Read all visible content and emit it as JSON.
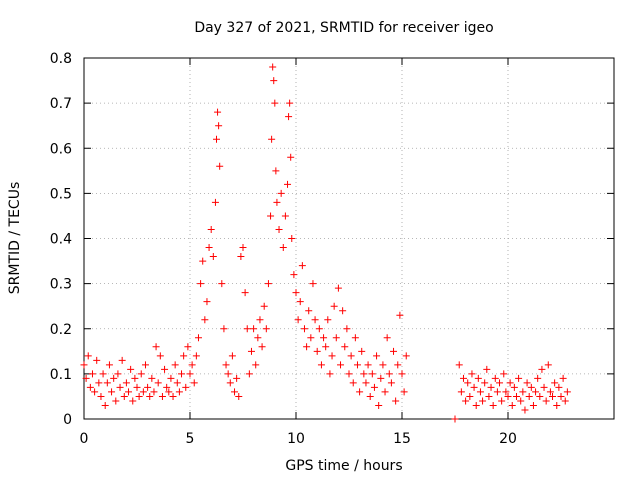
{
  "chart_data": {
    "type": "scatter",
    "title": "Day 327 of 2021, SRMTID for receiver igeo",
    "xlabel": "GPS time / hours",
    "ylabel": "SRMTID / TECUs",
    "xlim": [
      0,
      25
    ],
    "ylim": [
      0,
      0.8
    ],
    "x_ticks": [
      "0",
      "5",
      "10",
      "15",
      "20"
    ],
    "y_ticks": [
      "0",
      "0.1",
      "0.2",
      "0.3",
      "0.4",
      "0.5",
      "0.6",
      "0.7",
      "0.8"
    ],
    "grid": true,
    "marker": "plus",
    "series": [
      {
        "name": "SRMTID",
        "color": "#ff0000",
        "points": [
          [
            0.0,
            0.12
          ],
          [
            0.1,
            0.09
          ],
          [
            0.2,
            0.14
          ],
          [
            0.3,
            0.07
          ],
          [
            0.4,
            0.1
          ],
          [
            0.5,
            0.06
          ],
          [
            0.6,
            0.13
          ],
          [
            0.7,
            0.08
          ],
          [
            0.8,
            0.05
          ],
          [
            0.9,
            0.1
          ],
          [
            1.0,
            0.03
          ],
          [
            1.1,
            0.08
          ],
          [
            1.2,
            0.12
          ],
          [
            1.3,
            0.06
          ],
          [
            1.4,
            0.09
          ],
          [
            1.5,
            0.04
          ],
          [
            1.6,
            0.1
          ],
          [
            1.7,
            0.07
          ],
          [
            1.8,
            0.13
          ],
          [
            1.9,
            0.05
          ],
          [
            2.0,
            0.08
          ],
          [
            2.1,
            0.06
          ],
          [
            2.2,
            0.11
          ],
          [
            2.3,
            0.04
          ],
          [
            2.4,
            0.09
          ],
          [
            2.5,
            0.07
          ],
          [
            2.6,
            0.05
          ],
          [
            2.7,
            0.1
          ],
          [
            2.8,
            0.06
          ],
          [
            2.9,
            0.12
          ],
          [
            3.0,
            0.07
          ],
          [
            3.1,
            0.05
          ],
          [
            3.2,
            0.09
          ],
          [
            3.3,
            0.06
          ],
          [
            3.4,
            0.16
          ],
          [
            3.5,
            0.08
          ],
          [
            3.6,
            0.14
          ],
          [
            3.7,
            0.05
          ],
          [
            3.8,
            0.11
          ],
          [
            3.9,
            0.07
          ],
          [
            4.0,
            0.06
          ],
          [
            4.1,
            0.09
          ],
          [
            4.2,
            0.05
          ],
          [
            4.3,
            0.12
          ],
          [
            4.4,
            0.08
          ],
          [
            4.5,
            0.06
          ],
          [
            4.6,
            0.1
          ],
          [
            4.7,
            0.14
          ],
          [
            4.8,
            0.07
          ],
          [
            4.9,
            0.16
          ],
          [
            5.0,
            0.1
          ],
          [
            5.1,
            0.12
          ],
          [
            5.2,
            0.08
          ],
          [
            5.3,
            0.14
          ],
          [
            5.4,
            0.18
          ],
          [
            5.5,
            0.3
          ],
          [
            5.6,
            0.35
          ],
          [
            5.7,
            0.22
          ],
          [
            5.8,
            0.26
          ],
          [
            5.9,
            0.38
          ],
          [
            6.0,
            0.42
          ],
          [
            6.1,
            0.36
          ],
          [
            6.2,
            0.48
          ],
          [
            6.25,
            0.62
          ],
          [
            6.3,
            0.68
          ],
          [
            6.35,
            0.65
          ],
          [
            6.4,
            0.56
          ],
          [
            6.5,
            0.3
          ],
          [
            6.6,
            0.2
          ],
          [
            6.7,
            0.12
          ],
          [
            6.8,
            0.1
          ],
          [
            6.9,
            0.08
          ],
          [
            7.0,
            0.14
          ],
          [
            7.1,
            0.06
          ],
          [
            7.2,
            0.09
          ],
          [
            7.3,
            0.05
          ],
          [
            7.4,
            0.36
          ],
          [
            7.5,
            0.38
          ],
          [
            7.6,
            0.28
          ],
          [
            7.7,
            0.2
          ],
          [
            7.8,
            0.1
          ],
          [
            7.9,
            0.15
          ],
          [
            8.0,
            0.2
          ],
          [
            8.1,
            0.12
          ],
          [
            8.2,
            0.18
          ],
          [
            8.3,
            0.22
          ],
          [
            8.4,
            0.16
          ],
          [
            8.5,
            0.25
          ],
          [
            8.6,
            0.2
          ],
          [
            8.7,
            0.3
          ],
          [
            8.8,
            0.45
          ],
          [
            8.85,
            0.62
          ],
          [
            8.9,
            0.78
          ],
          [
            8.95,
            0.75
          ],
          [
            9.0,
            0.7
          ],
          [
            9.05,
            0.55
          ],
          [
            9.1,
            0.48
          ],
          [
            9.2,
            0.42
          ],
          [
            9.3,
            0.5
          ],
          [
            9.4,
            0.38
          ],
          [
            9.5,
            0.45
          ],
          [
            9.6,
            0.52
          ],
          [
            9.65,
            0.67
          ],
          [
            9.7,
            0.7
          ],
          [
            9.75,
            0.58
          ],
          [
            9.8,
            0.4
          ],
          [
            9.9,
            0.32
          ],
          [
            10.0,
            0.28
          ],
          [
            10.1,
            0.22
          ],
          [
            10.2,
            0.26
          ],
          [
            10.3,
            0.34
          ],
          [
            10.4,
            0.2
          ],
          [
            10.5,
            0.16
          ],
          [
            10.6,
            0.24
          ],
          [
            10.7,
            0.18
          ],
          [
            10.8,
            0.3
          ],
          [
            10.9,
            0.22
          ],
          [
            11.0,
            0.15
          ],
          [
            11.1,
            0.2
          ],
          [
            11.2,
            0.12
          ],
          [
            11.3,
            0.18
          ],
          [
            11.4,
            0.16
          ],
          [
            11.5,
            0.22
          ],
          [
            11.6,
            0.1
          ],
          [
            11.7,
            0.14
          ],
          [
            11.8,
            0.25
          ],
          [
            11.9,
            0.18
          ],
          [
            12.0,
            0.29
          ],
          [
            12.1,
            0.12
          ],
          [
            12.2,
            0.24
          ],
          [
            12.3,
            0.16
          ],
          [
            12.4,
            0.2
          ],
          [
            12.5,
            0.1
          ],
          [
            12.6,
            0.14
          ],
          [
            12.7,
            0.08
          ],
          [
            12.8,
            0.18
          ],
          [
            12.9,
            0.12
          ],
          [
            13.0,
            0.06
          ],
          [
            13.1,
            0.15
          ],
          [
            13.2,
            0.1
          ],
          [
            13.3,
            0.08
          ],
          [
            13.4,
            0.12
          ],
          [
            13.5,
            0.05
          ],
          [
            13.6,
            0.1
          ],
          [
            13.7,
            0.07
          ],
          [
            13.8,
            0.14
          ],
          [
            13.9,
            0.03
          ],
          [
            14.0,
            0.09
          ],
          [
            14.1,
            0.12
          ],
          [
            14.2,
            0.06
          ],
          [
            14.3,
            0.18
          ],
          [
            14.4,
            0.1
          ],
          [
            14.5,
            0.08
          ],
          [
            14.6,
            0.15
          ],
          [
            14.7,
            0.04
          ],
          [
            14.8,
            0.12
          ],
          [
            14.9,
            0.23
          ],
          [
            15.0,
            0.1
          ],
          [
            15.1,
            0.06
          ],
          [
            15.2,
            0.14
          ],
          [
            17.5,
            0.0
          ],
          [
            17.7,
            0.12
          ],
          [
            17.8,
            0.06
          ],
          [
            17.9,
            0.09
          ],
          [
            18.0,
            0.04
          ],
          [
            18.1,
            0.08
          ],
          [
            18.2,
            0.05
          ],
          [
            18.3,
            0.1
          ],
          [
            18.4,
            0.07
          ],
          [
            18.5,
            0.03
          ],
          [
            18.6,
            0.09
          ],
          [
            18.7,
            0.06
          ],
          [
            18.8,
            0.04
          ],
          [
            18.9,
            0.08
          ],
          [
            19.0,
            0.11
          ],
          [
            19.1,
            0.05
          ],
          [
            19.2,
            0.07
          ],
          [
            19.3,
            0.03
          ],
          [
            19.4,
            0.09
          ],
          [
            19.5,
            0.06
          ],
          [
            19.6,
            0.08
          ],
          [
            19.7,
            0.04
          ],
          [
            19.8,
            0.1
          ],
          [
            19.9,
            0.06
          ],
          [
            20.0,
            0.05
          ],
          [
            20.1,
            0.08
          ],
          [
            20.2,
            0.03
          ],
          [
            20.3,
            0.07
          ],
          [
            20.4,
            0.05
          ],
          [
            20.5,
            0.09
          ],
          [
            20.6,
            0.04
          ],
          [
            20.7,
            0.06
          ],
          [
            20.8,
            0.02
          ],
          [
            20.9,
            0.08
          ],
          [
            21.0,
            0.05
          ],
          [
            21.1,
            0.07
          ],
          [
            21.2,
            0.03
          ],
          [
            21.3,
            0.06
          ],
          [
            21.4,
            0.09
          ],
          [
            21.5,
            0.05
          ],
          [
            21.6,
            0.11
          ],
          [
            21.7,
            0.07
          ],
          [
            21.8,
            0.04
          ],
          [
            21.9,
            0.12
          ],
          [
            22.0,
            0.06
          ],
          [
            22.1,
            0.05
          ],
          [
            22.2,
            0.08
          ],
          [
            22.3,
            0.03
          ],
          [
            22.4,
            0.07
          ],
          [
            22.5,
            0.05
          ],
          [
            22.6,
            0.09
          ],
          [
            22.7,
            0.04
          ],
          [
            22.8,
            0.06
          ]
        ]
      }
    ]
  }
}
